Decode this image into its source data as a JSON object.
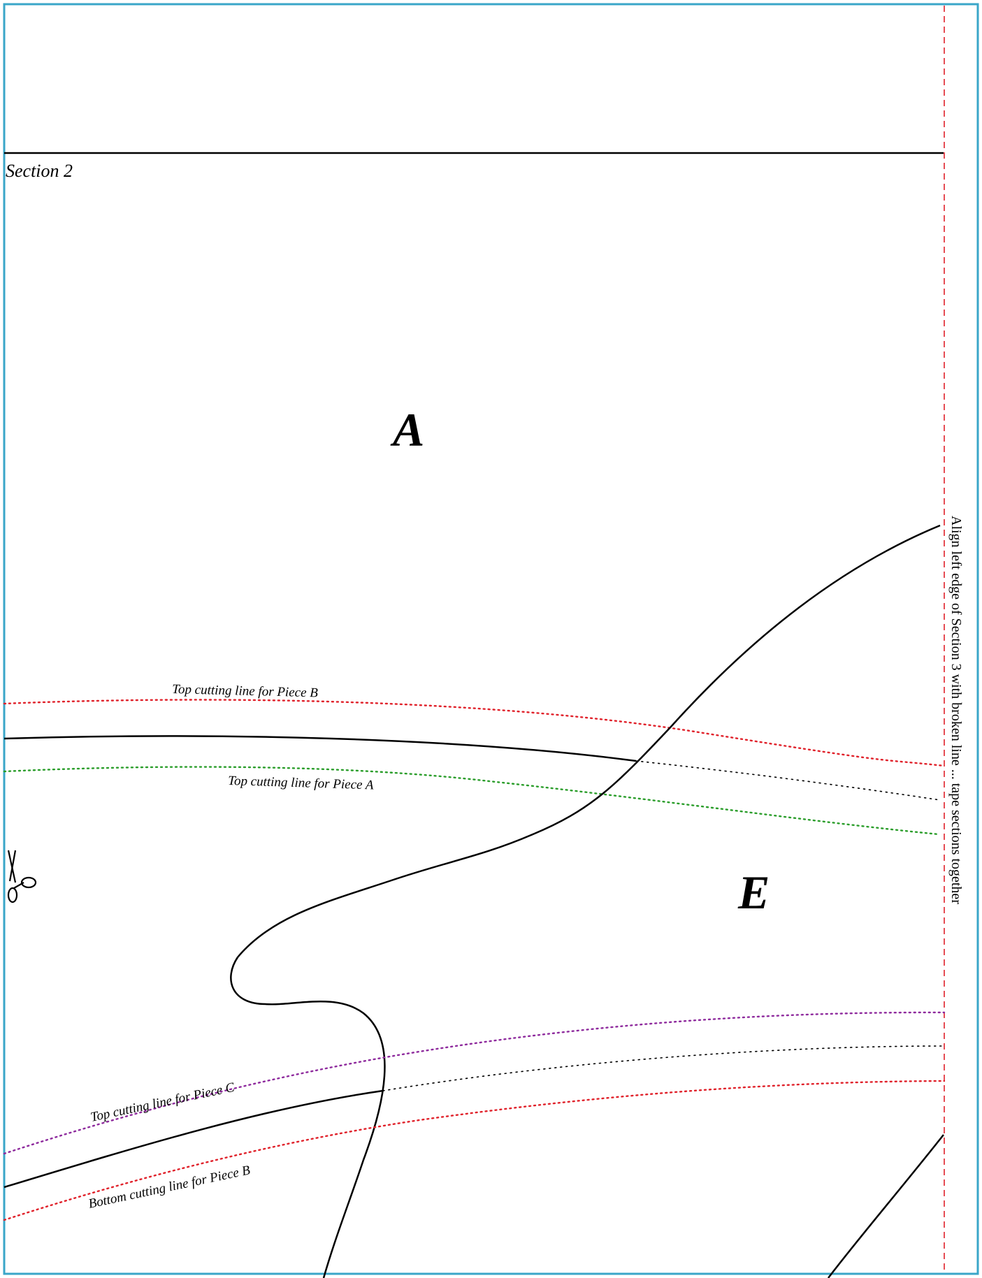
{
  "page": {
    "section_label": "Section 2",
    "border_color": "#3aa6c8",
    "alignment_note": "Align left edge of Section 3 with broken line ... tape sections together"
  },
  "pieces": [
    {
      "id": "piece-a",
      "letter": "A"
    },
    {
      "id": "piece-e",
      "letter": "E"
    }
  ],
  "cutting_lines": [
    {
      "id": "top-b",
      "label": "Top cutting line for Piece B",
      "color": "#e0212a"
    },
    {
      "id": "top-a",
      "label": "Top cutting line for Piece A",
      "color": "#2a9d2a"
    },
    {
      "id": "top-c",
      "label": "Top cutting line for Piece C",
      "color": "#8e2a9d"
    },
    {
      "id": "bottom-b",
      "label": "Bottom cutting line for Piece B",
      "color": "#e0212a"
    }
  ],
  "icons": {
    "scissors": "scissors-icon"
  }
}
